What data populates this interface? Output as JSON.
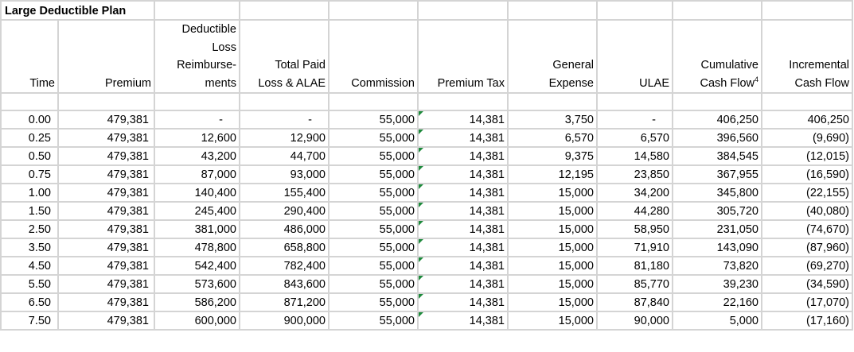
{
  "title": "Large Deductible Plan",
  "headers": {
    "time": "Time",
    "premium": "Premium",
    "dlr": [
      "Deductible",
      "Loss",
      "Reimburse-",
      "ments"
    ],
    "paid": [
      "Total Paid",
      "Loss & ALAE"
    ],
    "commission": "Commission",
    "premium_tax": "Premium Tax",
    "general": [
      "General",
      "Expense"
    ],
    "ulae": "ULAE",
    "cumulative": [
      "Cumulative",
      "Cash Flow"
    ],
    "cumulative_footnote": "4",
    "incremental": [
      "Incremental",
      "Cash Flow"
    ]
  },
  "rows": [
    [
      "0.00",
      "479,381",
      "-",
      "-",
      "55,000",
      "14,381",
      "3,750",
      "-",
      "406,250",
      "406,250"
    ],
    [
      "0.25",
      "479,381",
      "12,600",
      "12,900",
      "55,000",
      "14,381",
      "6,570",
      "6,570",
      "396,560",
      "(9,690)"
    ],
    [
      "0.50",
      "479,381",
      "43,200",
      "44,700",
      "55,000",
      "14,381",
      "9,375",
      "14,580",
      "384,545",
      "(12,015)"
    ],
    [
      "0.75",
      "479,381",
      "87,000",
      "93,000",
      "55,000",
      "14,381",
      "12,195",
      "23,850",
      "367,955",
      "(16,590)"
    ],
    [
      "1.00",
      "479,381",
      "140,400",
      "155,400",
      "55,000",
      "14,381",
      "15,000",
      "34,200",
      "345,800",
      "(22,155)"
    ],
    [
      "1.50",
      "479,381",
      "245,400",
      "290,400",
      "55,000",
      "14,381",
      "15,000",
      "44,280",
      "305,720",
      "(40,080)"
    ],
    [
      "2.50",
      "479,381",
      "381,000",
      "486,000",
      "55,000",
      "14,381",
      "15,000",
      "58,950",
      "231,050",
      "(74,670)"
    ],
    [
      "3.50",
      "479,381",
      "478,800",
      "658,800",
      "55,000",
      "14,381",
      "15,000",
      "71,910",
      "143,090",
      "(87,960)"
    ],
    [
      "4.50",
      "479,381",
      "542,400",
      "782,400",
      "55,000",
      "14,381",
      "15,000",
      "81,180",
      "73,820",
      "(69,270)"
    ],
    [
      "5.50",
      "479,381",
      "573,600",
      "843,600",
      "55,000",
      "14,381",
      "15,000",
      "85,770",
      "39,230",
      "(34,590)"
    ],
    [
      "6.50",
      "479,381",
      "586,200",
      "871,200",
      "55,000",
      "14,381",
      "15,000",
      "87,840",
      "22,160",
      "(17,070)"
    ],
    [
      "7.50",
      "479,381",
      "600,000",
      "900,000",
      "55,000",
      "14,381",
      "15,000",
      "90,000",
      "5,000",
      "(17,160)"
    ]
  ],
  "colors": {
    "gridline": "#d4d4d4",
    "cell_marker": "#1e8a3c"
  }
}
